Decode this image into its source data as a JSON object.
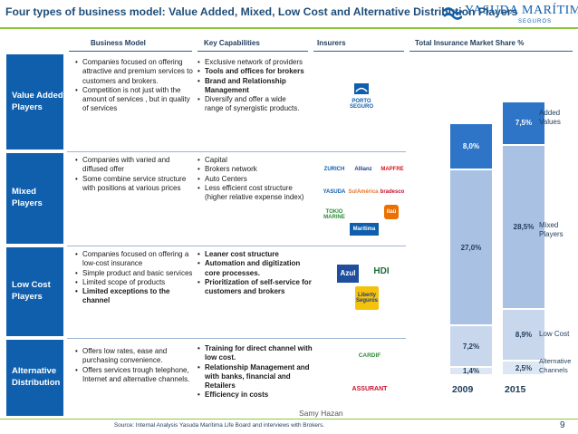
{
  "slide": {
    "title": "Four types of business model: Value Added, Mixed, Low Cost and Alternative Distribution Players",
    "company_logo": "YASUDA MARÍTIMA",
    "company_logo_sub": "SEGUROS",
    "source": "Source: Internal Analysis Yasuda Marítima Life Board and interviews with Brokers.",
    "presenter": "Samy Hazan",
    "page_number": "9"
  },
  "columns": {
    "business_model": "Business Model",
    "key_capabilities": "Key Capabilities",
    "insurers": "Insurers",
    "market_share": "Total Insurance Market Share %"
  },
  "rows": [
    {
      "category": "Value Added Players",
      "business_model": [
        "Companies focused on offering attractive and premium services to customers and brokers.",
        "Competition is not just with the amount of services , but in quality of services"
      ],
      "capabilities": [
        {
          "text": "Exclusive network of providers",
          "bold": false
        },
        {
          "text": "Tools and offices for brokers",
          "bold": true
        },
        {
          "text": "Brand and Relationship Management",
          "bold": true
        },
        {
          "text": "Diversify and offer a wide range of synergistic products.",
          "bold": false
        }
      ],
      "insurers": [
        "PORTO SEGURO"
      ]
    },
    {
      "category": "Mixed Players",
      "business_model": [
        "Companies with varied and diffused offer",
        "Some combine service structure with positions at various prices"
      ],
      "capabilities": [
        {
          "text": "Capital",
          "bold": false
        },
        {
          "text": "Brokers network",
          "bold": false
        },
        {
          "text": "Auto Centers",
          "bold": false
        },
        {
          "text": "Less efficient cost structure (higher relative expense index)",
          "bold": false
        }
      ],
      "insurers": [
        "ZURICH",
        "Allianz",
        "MAPFRE",
        "YASUDA",
        "SulAmérica",
        "bradesco",
        "TOKIO MARINE",
        "Marítima",
        "itaú"
      ]
    },
    {
      "category": "Low Cost Players",
      "business_model": [
        "Companies focused on offering a low-cost insurance",
        "Simple product and basic services",
        "Limited scope of products",
        "Limited exceptions to the channel"
      ],
      "capabilities": [
        {
          "text": "Leaner cost structure",
          "bold": true
        },
        {
          "text": "Automation and digitization core processes.",
          "bold": true
        },
        {
          "text": "Prioritization of self-service for customers and brokers",
          "bold": true
        }
      ],
      "insurers": [
        "Azul",
        "HDI",
        "Liberty Seguros"
      ]
    },
    {
      "category": "Alternative Distribution",
      "business_model": [
        "Offers low rates, ease and purchasing convenience.",
        "Offers services trough telephone, Internet and alternative channels."
      ],
      "capabilities": [
        {
          "text": "Training for direct channel with low cost.",
          "bold": true
        },
        {
          "text": "Relationship Management and with banks, financial and Retailers",
          "bold": true
        },
        {
          "text": "Efficiency in costs",
          "bold": true
        }
      ],
      "insurers": [
        "CARDIF",
        "ASSURANT"
      ]
    }
  ],
  "colors": {
    "primary_blue": "#0f5fad",
    "title_blue": "#1f4e79",
    "accent_green": "#8dc63f",
    "bar_dark": "#2e75c8",
    "bar_mid": "#a9c2e3",
    "bar_light": "#c8d7ec",
    "bar_pale": "#dde7f4"
  },
  "chart_data": {
    "type": "bar",
    "stacked": true,
    "categories": [
      "2009",
      "2015"
    ],
    "series": [
      {
        "name": "Alternative Channels",
        "values": [
          1.4,
          2.5
        ],
        "labels": [
          "1,4%",
          "2,5%"
        ]
      },
      {
        "name": "Low Cost",
        "values": [
          7.2,
          8.9
        ],
        "labels": [
          "7,2%",
          "8,9%"
        ]
      },
      {
        "name": "Mixed Players",
        "values": [
          27.0,
          28.5
        ],
        "labels": [
          "27,0%",
          "28,5%"
        ]
      },
      {
        "name": "Added Values",
        "values": [
          8.0,
          7.5
        ],
        "labels": [
          "8,0%",
          "7,5%"
        ]
      }
    ],
    "legend": [
      "Added Values",
      "Mixed Players",
      "Low Cost",
      "Alternative Channels"
    ]
  }
}
